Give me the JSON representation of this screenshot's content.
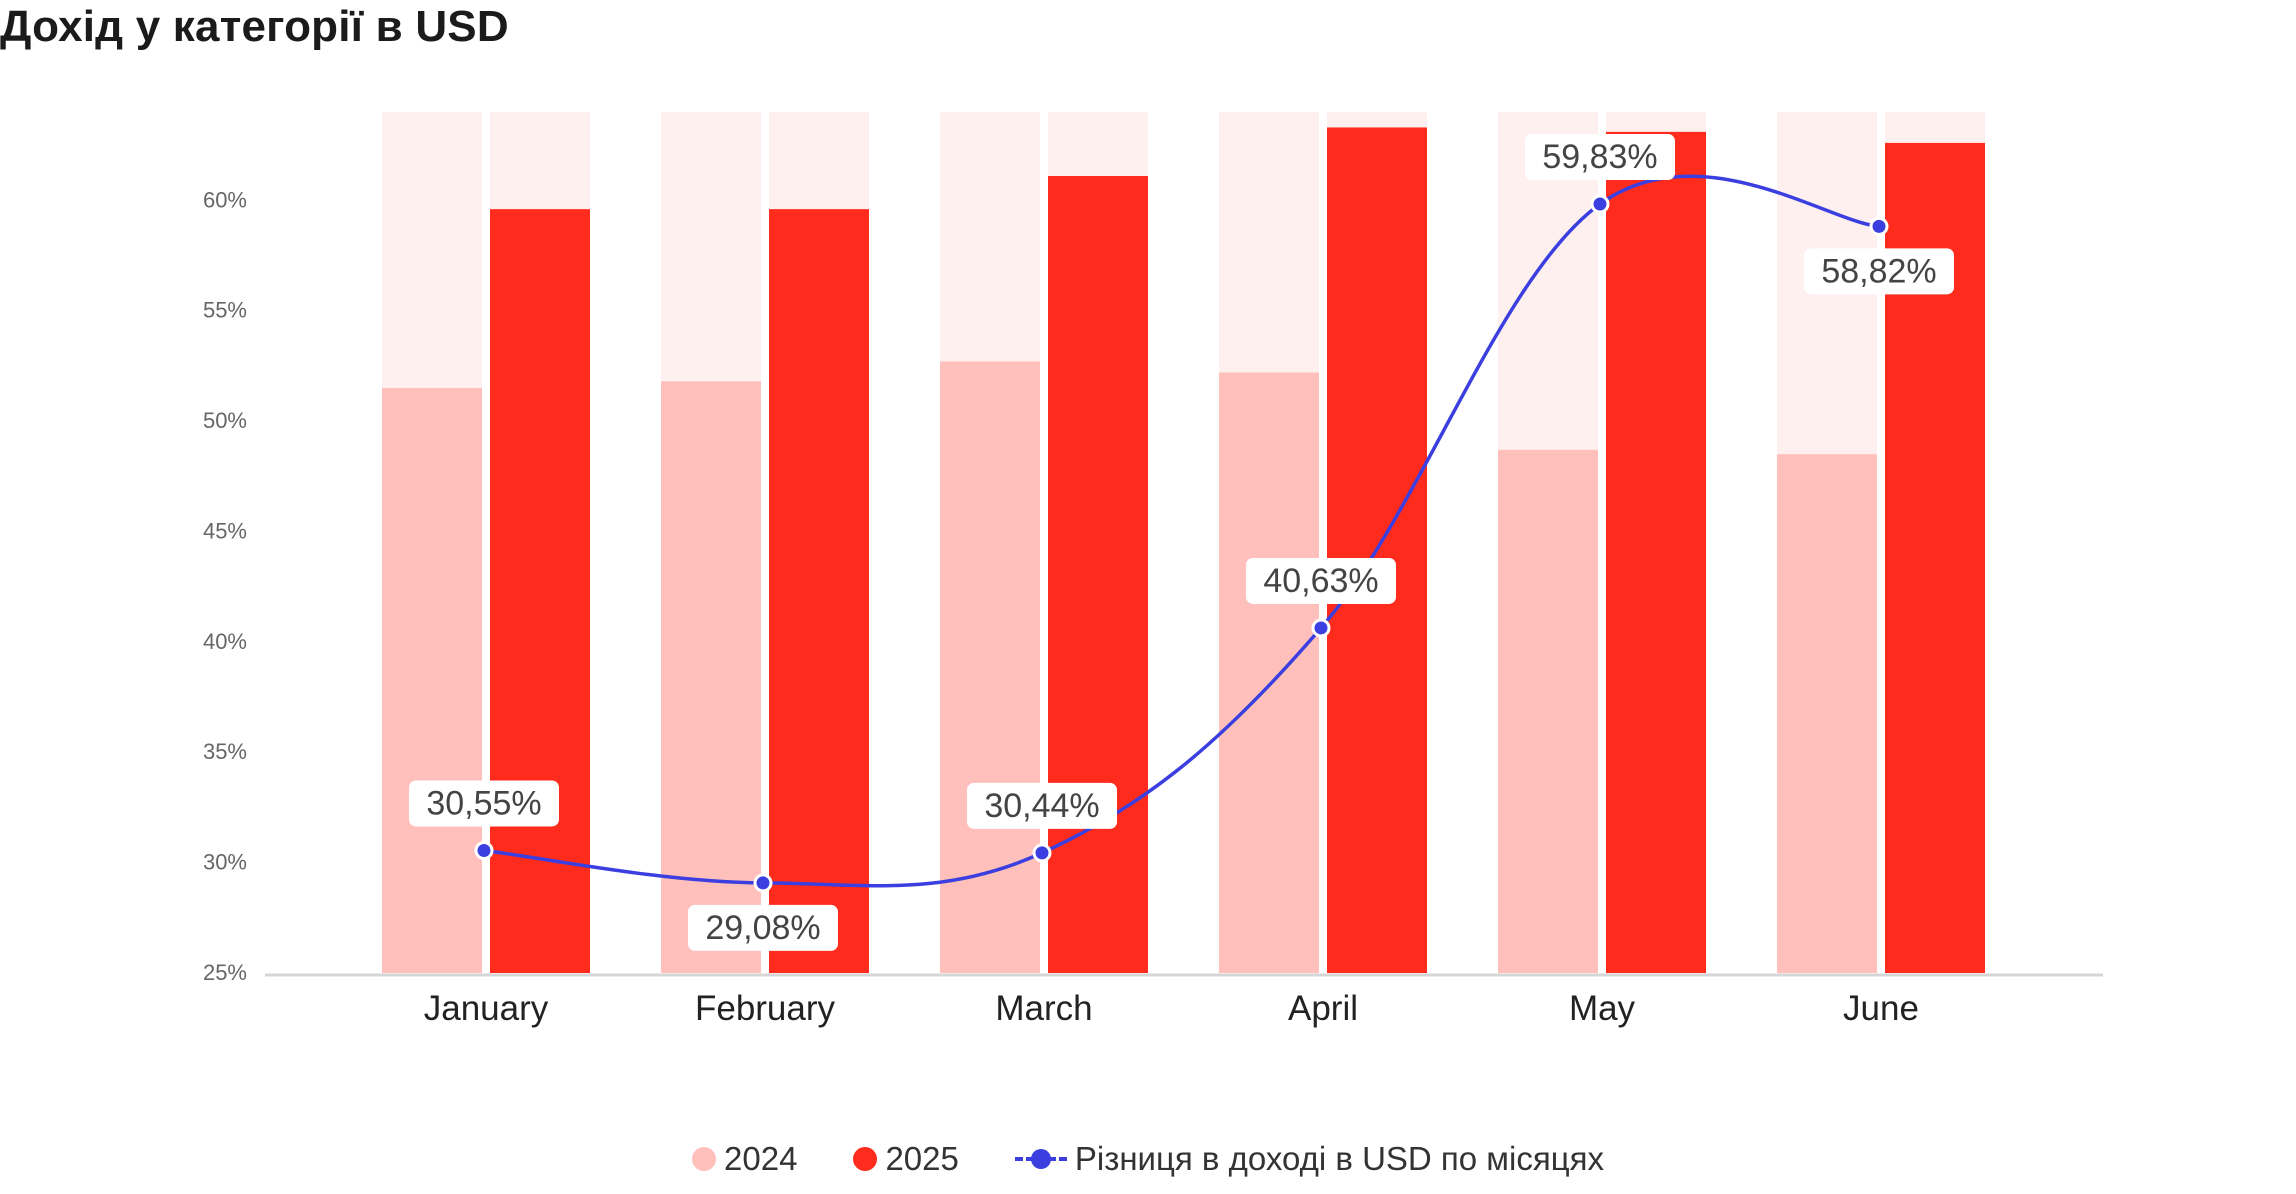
{
  "title": "Дохід у категорії в USD",
  "colors": {
    "c2024": "#ffc0bc",
    "c2025": "#ff2b1c",
    "track": "#fff0f0",
    "line": "#3b3fe0"
  },
  "legend": {
    "s2024": "2024",
    "s2025": "2025",
    "diff": "Різниця в доході в USD по місяцях"
  },
  "chart_data": {
    "type": "bar",
    "title": "Дохід у категорії в USD",
    "categories": [
      "January",
      "February",
      "March",
      "April",
      "May",
      "June"
    ],
    "ylim": [
      25,
      64
    ],
    "yticks": [
      "25%",
      "30%",
      "35%",
      "40%",
      "45%",
      "50%",
      "55%",
      "60%"
    ],
    "grid": false,
    "legend_position": "bottom-center",
    "series": [
      {
        "name": "2024",
        "type": "bar",
        "values": [
          51.5,
          51.8,
          52.7,
          52.2,
          48.7,
          48.5
        ]
      },
      {
        "name": "2025",
        "type": "bar",
        "values": [
          59.6,
          59.6,
          61.1,
          63.3,
          63.1,
          62.6
        ]
      },
      {
        "name": "Різниця в доході в USD по місяцях",
        "type": "line",
        "values": [
          30.55,
          29.08,
          30.44,
          40.63,
          59.83,
          58.82
        ],
        "labels": [
          "30,55%",
          "29,08%",
          "30,44%",
          "40,63%",
          "59,83%",
          "58,82%"
        ]
      }
    ]
  }
}
